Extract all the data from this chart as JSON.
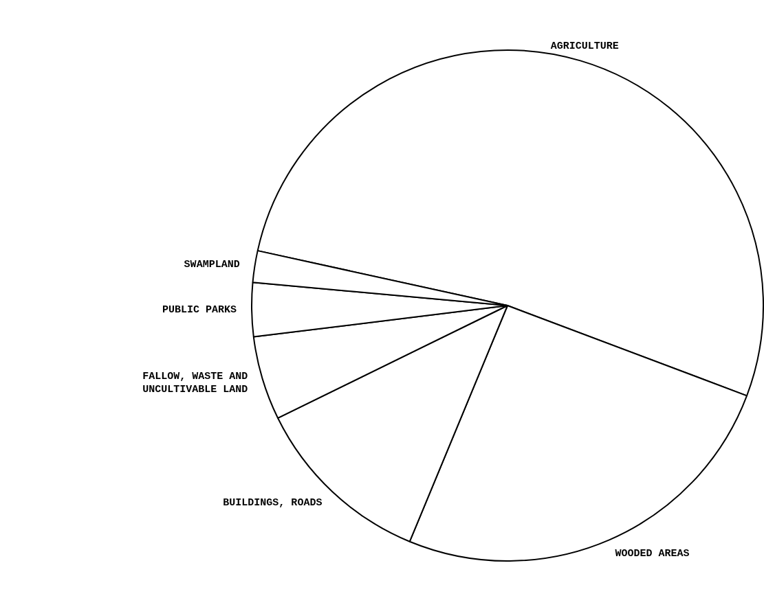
{
  "chart_data": {
    "type": "pie",
    "categories": [
      "AGRICULTURE",
      "WOODED AREAS",
      "BUILDINGS, ROADS",
      "FALLOW, WASTE AND UNCULTIVABLE LAND",
      "PUBLIC PARKS",
      "SWAMPLAND"
    ],
    "values": [
      52.3,
      25.5,
      11.5,
      5.3,
      3.4,
      2.0
    ],
    "colors": [
      "#ffffff",
      "#ffffff",
      "#ffffff",
      "#ffffff",
      "#ffffff",
      "#ffffff"
    ],
    "legend": false
  }
}
